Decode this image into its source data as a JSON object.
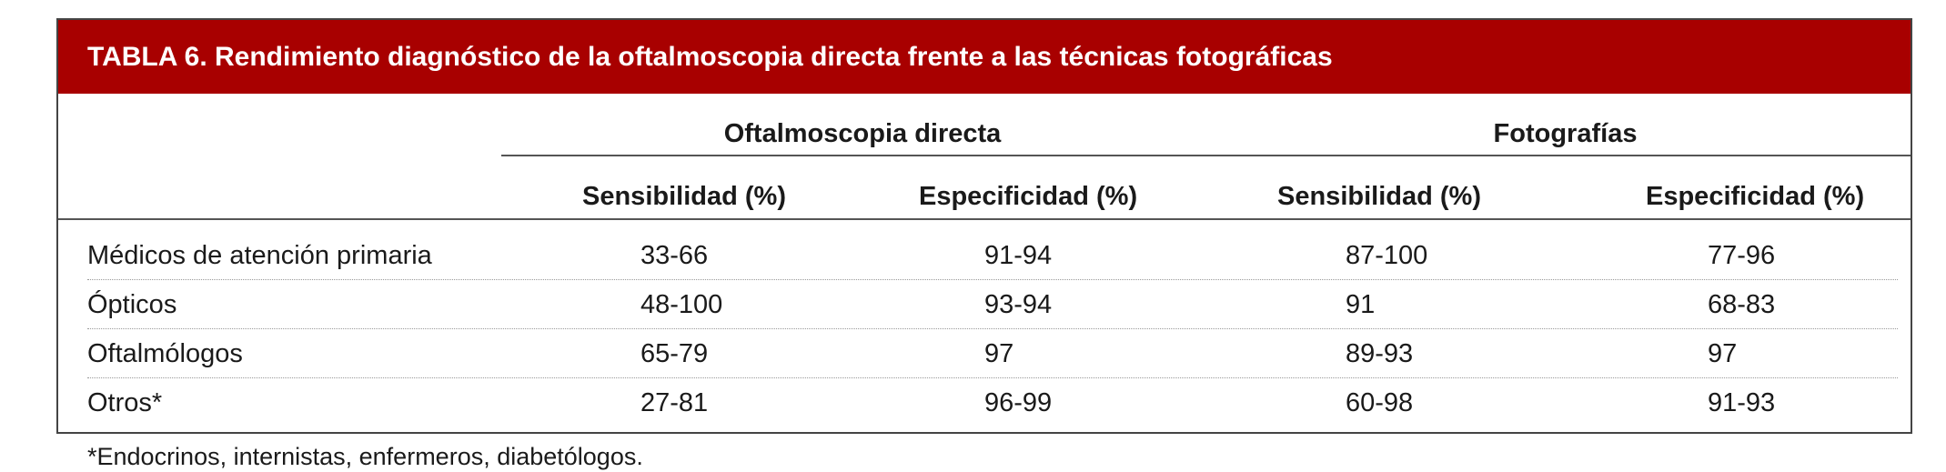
{
  "table": {
    "title": "TABLA 6. Rendimiento diagnóstico de la oftalmoscopia directa frente a las técnicas fotográficas",
    "group_headers": [
      "Oftalmoscopia directa",
      "Fotografías"
    ],
    "column_headers": [
      "Sensibilidad (%)",
      "Especificidad (%)",
      "Sensibilidad (%)",
      "Especificidad (%)"
    ],
    "rows": [
      {
        "label": "Médicos de atención primaria",
        "values": [
          "33-66",
          "91-94",
          "87-100",
          "77-96"
        ]
      },
      {
        "label": "Ópticos",
        "values": [
          "48-100",
          "93-94",
          "91",
          "68-83"
        ]
      },
      {
        "label": "Oftalmólogos",
        "values": [
          "65-79",
          "97",
          "89-93",
          "97"
        ]
      },
      {
        "label": "Otros*",
        "values": [
          "27-81",
          "96-99",
          "60-98",
          "91-93"
        ]
      }
    ],
    "title_bar_color": "#a80000"
  },
  "footnote": "*Endocrinos, internistas, enfermeros, diabetólogos."
}
